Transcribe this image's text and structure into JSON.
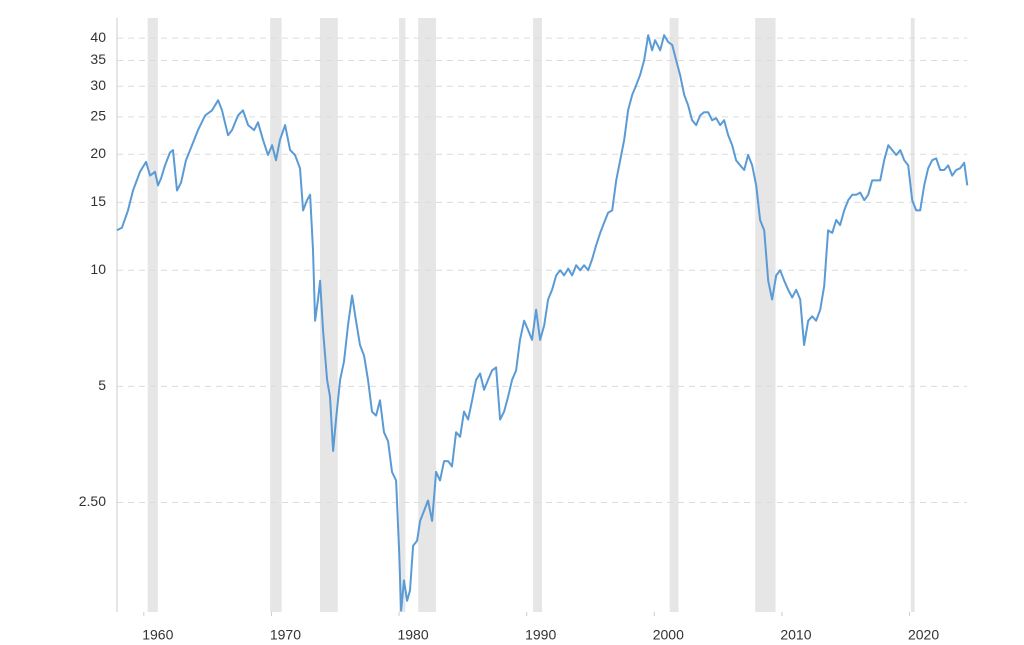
{
  "chart_data": {
    "type": "line",
    "log_y": true,
    "grid": true,
    "xlim": [
      1957.9,
      2024.5
    ],
    "xticks": [
      1960,
      1970,
      1980,
      1990,
      2000,
      2010,
      2020
    ],
    "ylim": [
      1.3,
      45.1
    ],
    "yticks": [
      {
        "value": 2.5,
        "label": "2.50"
      },
      5,
      10,
      15,
      20,
      25,
      30,
      35,
      40
    ],
    "recession_color": "#e6e6e6",
    "recessions": [
      [
        1960.3,
        1961.1
      ],
      [
        1969.9,
        1970.8
      ],
      [
        1973.8,
        1975.2
      ],
      [
        1980.0,
        1980.5
      ],
      [
        1981.5,
        1982.9
      ],
      [
        1990.5,
        1991.2
      ],
      [
        2001.2,
        2001.9
      ],
      [
        2007.9,
        2009.5
      ],
      [
        2020.1,
        2020.4
      ]
    ],
    "x": [
      1957.9,
      1958.29,
      1958.76,
      1959.15,
      1959.7,
      1960.17,
      1960.49,
      1960.88,
      1961.11,
      1961.35,
      1961.66,
      1962.05,
      1962.29,
      1962.6,
      1962.92,
      1963.31,
      1963.78,
      1964.25,
      1964.8,
      1965.35,
      1965.82,
      1966.13,
      1966.6,
      1966.91,
      1967.38,
      1967.77,
      1968.17,
      1968.64,
      1968.95,
      1969.34,
      1969.73,
      1970.05,
      1970.36,
      1970.67,
      1971.07,
      1971.46,
      1971.85,
      1972.24,
      1972.48,
      1972.79,
      1973.03,
      1973.26,
      1973.42,
      1973.65,
      1973.81,
      1974.04,
      1974.36,
      1974.59,
      1974.83,
      1975.06,
      1975.38,
      1975.69,
      1976.0,
      1976.32,
      1976.63,
      1976.94,
      1977.26,
      1977.57,
      1977.88,
      1978.2,
      1978.51,
      1978.82,
      1979.14,
      1979.45,
      1979.77,
      1980.0,
      1980.16,
      1980.39,
      1980.63,
      1980.86,
      1981.1,
      1981.41,
      1981.65,
      1981.96,
      1982.27,
      1982.59,
      1982.9,
      1983.21,
      1983.53,
      1983.84,
      1984.15,
      1984.47,
      1984.78,
      1985.09,
      1985.41,
      1985.72,
      1986.04,
      1986.35,
      1986.66,
      1986.98,
      1987.29,
      1987.6,
      1987.92,
      1988.23,
      1988.54,
      1988.86,
      1989.17,
      1989.48,
      1989.8,
      1990.11,
      1990.42,
      1990.74,
      1991.05,
      1991.37,
      1991.68,
      1991.99,
      1992.31,
      1992.62,
      1992.93,
      1993.25,
      1993.56,
      1993.88,
      1994.19,
      1994.5,
      1994.82,
      1995.13,
      1995.44,
      1995.76,
      1996.07,
      1996.38,
      1996.7,
      1997.01,
      1997.33,
      1997.64,
      1997.95,
      1998.27,
      1998.58,
      1998.89,
      1999.21,
      1999.52,
      1999.83,
      2000.06,
      2000.46,
      2000.77,
      2001.08,
      2001.4,
      2001.71,
      2002.02,
      2002.34,
      2002.65,
      2002.96,
      2003.28,
      2003.59,
      2003.9,
      2004.22,
      2004.53,
      2004.85,
      2005.16,
      2005.47,
      2005.79,
      2006.1,
      2006.41,
      2006.73,
      2007.04,
      2007.35,
      2007.67,
      2007.98,
      2008.29,
      2008.61,
      2008.92,
      2009.23,
      2009.55,
      2009.86,
      2010.18,
      2010.49,
      2010.8,
      2011.12,
      2011.43,
      2011.74,
      2012.06,
      2012.37,
      2012.68,
      2013.0,
      2013.31,
      2013.62,
      2013.94,
      2014.25,
      2014.56,
      2014.88,
      2015.19,
      2015.51,
      2015.82,
      2016.13,
      2016.45,
      2016.76,
      2017.07,
      2017.39,
      2017.7,
      2018.01,
      2018.33,
      2018.64,
      2018.95,
      2019.27,
      2019.58,
      2019.89,
      2020.21,
      2020.52,
      2020.83,
      2021.15,
      2021.46,
      2021.77,
      2022.09,
      2022.4,
      2022.71,
      2023.03,
      2023.34,
      2023.65,
      2023.97,
      2024.28,
      2024.52
    ],
    "series": [
      {
        "color": "#5b9bd5",
        "values": [
          12.7,
          12.9,
          14.3,
          16.1,
          18.0,
          19.1,
          17.6,
          18.0,
          16.6,
          17.3,
          18.7,
          20.2,
          20.5,
          16.1,
          16.9,
          19.3,
          21.1,
          23.1,
          25.2,
          26.0,
          27.6,
          26.0,
          22.4,
          23.1,
          25.2,
          26.0,
          23.8,
          23.1,
          24.2,
          21.8,
          19.9,
          21.1,
          19.3,
          21.8,
          23.8,
          20.5,
          19.9,
          18.4,
          14.3,
          15.2,
          15.7,
          11.3,
          7.4,
          8.4,
          9.4,
          7.0,
          5.2,
          4.7,
          3.4,
          4.1,
          5.2,
          5.8,
          7.2,
          8.6,
          7.4,
          6.4,
          6.0,
          5.2,
          4.3,
          4.2,
          4.6,
          3.8,
          3.6,
          3.0,
          2.85,
          1.88,
          1.31,
          1.57,
          1.39,
          1.48,
          1.93,
          1.99,
          2.24,
          2.38,
          2.53,
          2.24,
          3.0,
          2.85,
          3.2,
          3.2,
          3.1,
          3.8,
          3.7,
          4.3,
          4.1,
          4.6,
          5.2,
          5.4,
          4.9,
          5.2,
          5.5,
          5.6,
          4.1,
          4.3,
          4.7,
          5.2,
          5.5,
          6.6,
          7.4,
          7.0,
          6.6,
          7.9,
          6.6,
          7.2,
          8.4,
          8.9,
          9.7,
          10,
          9.7,
          10.1,
          9.7,
          10.3,
          10,
          10.3,
          10,
          10.7,
          11.6,
          12.5,
          13.3,
          14.1,
          14.3,
          17.1,
          19.3,
          21.8,
          26.0,
          28.5,
          30.2,
          32.1,
          35.1,
          40.7,
          37.2,
          39.5,
          37.2,
          40.7,
          39.1,
          38.4,
          35.1,
          32.1,
          28.5,
          26.8,
          24.5,
          23.8,
          25.2,
          25.7,
          25.7,
          24.5,
          24.8,
          23.8,
          24.5,
          22.4,
          21.1,
          19.3,
          18.7,
          18.2,
          19.9,
          18.7,
          16.6,
          13.5,
          12.7,
          9.4,
          8.4,
          9.7,
          10,
          9.4,
          8.9,
          8.5,
          8.9,
          8.4,
          6.4,
          7.4,
          7.6,
          7.4,
          7.9,
          9.1,
          12.7,
          12.5,
          13.5,
          13.1,
          14.3,
          15.2,
          15.7,
          15.7,
          15.9,
          15.2,
          15.7,
          17.1,
          17.1,
          17.1,
          19.3,
          21.1,
          20.5,
          19.9,
          20.5,
          19.3,
          18.7,
          15.2,
          14.3,
          14.3,
          16.6,
          18.4,
          19.3,
          19.5,
          18.2,
          18.2,
          18.7,
          17.6,
          18.2,
          18.4,
          19.0,
          16.6
        ]
      }
    ]
  }
}
